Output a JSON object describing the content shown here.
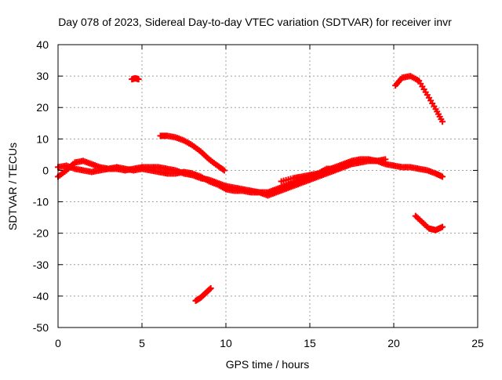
{
  "chart_data": {
    "type": "scatter",
    "title": "Day 078 of 2023, Sidereal Day-to-day VTEC variation (SDTVAR) for receiver invr",
    "xlabel": "GPS time / hours",
    "ylabel": "SDTVAR / TECUs",
    "xlim": [
      0,
      25
    ],
    "ylim": [
      -50,
      40
    ],
    "xticks": [
      0,
      5,
      10,
      15,
      20,
      25
    ],
    "yticks": [
      -50,
      -40,
      -30,
      -20,
      -10,
      0,
      10,
      20,
      30,
      40
    ],
    "grid": true,
    "marker": "+",
    "color": "#ff0000",
    "series": [
      {
        "name": "arc-main-upper",
        "points": [
          [
            0.0,
            -2.0
          ],
          [
            0.5,
            0.0
          ],
          [
            1.0,
            2.5
          ],
          [
            1.5,
            3.0
          ],
          [
            2.0,
            2.0
          ],
          [
            2.5,
            1.0
          ],
          [
            3.0,
            0.5
          ],
          [
            3.5,
            0.5
          ],
          [
            4.0,
            0.0
          ],
          [
            4.5,
            0.5
          ],
          [
            5.0,
            1.0
          ],
          [
            5.5,
            1.0
          ],
          [
            6.0,
            1.0
          ],
          [
            6.5,
            0.5
          ],
          [
            7.0,
            0.0
          ],
          [
            7.5,
            -1.0
          ],
          [
            8.0,
            -1.5
          ],
          [
            8.5,
            -2.5
          ],
          [
            9.0,
            -3.0
          ],
          [
            9.5,
            -4.0
          ],
          [
            10.0,
            -5.0
          ],
          [
            10.5,
            -5.5
          ],
          [
            11.0,
            -6.0
          ],
          [
            11.5,
            -6.5
          ],
          [
            12.0,
            -7.0
          ],
          [
            12.5,
            -7.0
          ],
          [
            13.0,
            -6.0
          ],
          [
            13.5,
            -5.0
          ],
          [
            14.0,
            -4.0
          ],
          [
            14.5,
            -3.0
          ],
          [
            15.0,
            -2.0
          ],
          [
            15.5,
            -1.0
          ],
          [
            16.0,
            0.0
          ],
          [
            16.5,
            1.0
          ],
          [
            17.0,
            2.0
          ],
          [
            17.5,
            3.0
          ],
          [
            18.0,
            3.5
          ],
          [
            18.5,
            3.5
          ],
          [
            19.0,
            3.0
          ],
          [
            19.5,
            2.0
          ],
          [
            20.0,
            1.5
          ],
          [
            20.5,
            1.0
          ],
          [
            21.0,
            1.0
          ],
          [
            21.5,
            0.5
          ],
          [
            22.0,
            0.0
          ],
          [
            22.5,
            -1.0
          ],
          [
            22.9,
            -2.0
          ]
        ]
      },
      {
        "name": "arc-main-lower",
        "points": [
          [
            0.0,
            1.0
          ],
          [
            0.5,
            1.5
          ],
          [
            1.0,
            0.5
          ],
          [
            1.5,
            0.0
          ],
          [
            2.0,
            -0.5
          ],
          [
            2.5,
            0.0
          ],
          [
            3.0,
            0.5
          ],
          [
            3.5,
            1.0
          ],
          [
            4.0,
            0.5
          ],
          [
            4.5,
            0.0
          ],
          [
            5.0,
            0.5
          ],
          [
            5.5,
            0.0
          ],
          [
            6.0,
            -0.5
          ],
          [
            6.5,
            -1.0
          ],
          [
            7.0,
            -1.0
          ],
          [
            7.5,
            -0.5
          ],
          [
            8.0,
            -1.0
          ],
          [
            8.5,
            -2.0
          ],
          [
            9.0,
            -3.5
          ],
          [
            9.5,
            -4.5
          ],
          [
            10.0,
            -6.0
          ],
          [
            10.5,
            -6.5
          ],
          [
            11.0,
            -6.5
          ],
          [
            11.5,
            -7.0
          ],
          [
            12.0,
            -7.0
          ],
          [
            12.5,
            -8.0
          ],
          [
            13.0,
            -7.0
          ],
          [
            13.5,
            -6.0
          ],
          [
            14.0,
            -5.0
          ],
          [
            14.5,
            -4.0
          ],
          [
            15.0,
            -3.0
          ],
          [
            15.5,
            -2.0
          ],
          [
            16.0,
            -1.0
          ],
          [
            16.5,
            0.0
          ],
          [
            17.0,
            1.0
          ],
          [
            17.5,
            2.0
          ],
          [
            18.0,
            2.5
          ],
          [
            18.5,
            3.0
          ],
          [
            19.0,
            3.0
          ],
          [
            19.5,
            3.5
          ]
        ]
      },
      {
        "name": "arc-4.5h",
        "points": [
          [
            4.4,
            29.0
          ],
          [
            4.6,
            29.3
          ],
          [
            4.8,
            29.0
          ]
        ]
      },
      {
        "name": "arc-6-10h",
        "points": [
          [
            6.1,
            11.0
          ],
          [
            6.5,
            11.0
          ],
          [
            7.0,
            10.5
          ],
          [
            7.5,
            9.5
          ],
          [
            8.0,
            8.0
          ],
          [
            8.5,
            6.0
          ],
          [
            9.0,
            3.5
          ],
          [
            9.5,
            1.5
          ],
          [
            9.9,
            0.0
          ]
        ]
      },
      {
        "name": "arc-8-9h",
        "points": [
          [
            8.2,
            -41.5
          ],
          [
            8.5,
            -40.5
          ],
          [
            8.8,
            -39.0
          ],
          [
            9.1,
            -37.5
          ]
        ]
      },
      {
        "name": "arc-20-23h-high",
        "points": [
          [
            20.1,
            27.0
          ],
          [
            20.5,
            29.5
          ],
          [
            21.0,
            30.0
          ],
          [
            21.5,
            28.5
          ],
          [
            22.0,
            24.0
          ],
          [
            22.5,
            19.5
          ],
          [
            22.9,
            15.5
          ]
        ]
      },
      {
        "name": "arc-21-23h-low",
        "points": [
          [
            21.3,
            -14.5
          ],
          [
            21.7,
            -16.5
          ],
          [
            22.1,
            -18.5
          ],
          [
            22.5,
            -19.0
          ],
          [
            22.9,
            -18.0
          ]
        ]
      },
      {
        "name": "arc-13-16h",
        "points": [
          [
            13.3,
            -3.5
          ],
          [
            14.0,
            -2.5
          ],
          [
            14.5,
            -2.0
          ],
          [
            15.0,
            -1.5
          ],
          [
            15.5,
            -1.0
          ],
          [
            16.0,
            0.5
          ],
          [
            16.5,
            0.5
          ],
          [
            17.0,
            1.5
          ]
        ]
      }
    ]
  }
}
